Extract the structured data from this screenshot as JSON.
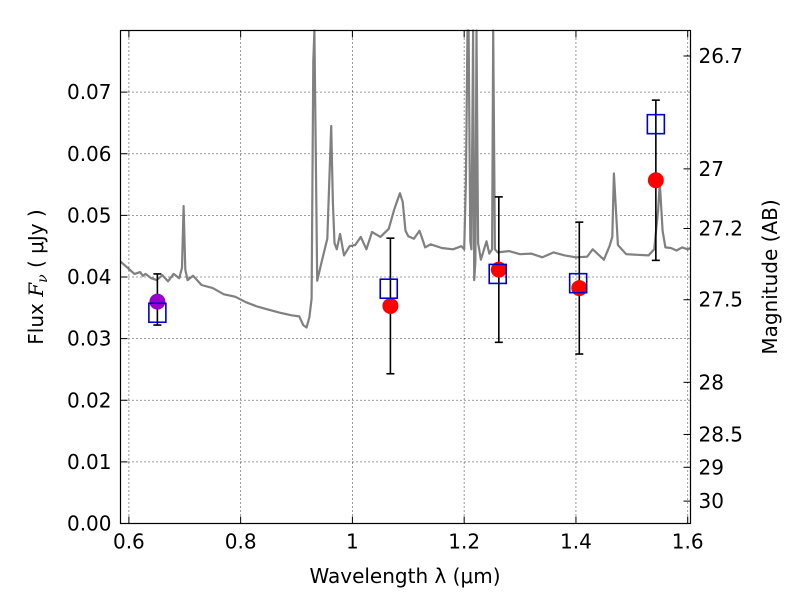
{
  "chart_data": {
    "type": "line",
    "xlabel": "Wavelength  λ (μm)",
    "ylabel": "Flux  F_ν  ( μJy )",
    "ylabel_parts": {
      "main": "Flux  ",
      "sym": "F",
      "sub": "ν",
      "unit": "  ( μJy )"
    },
    "y2label": "Magnitude (AB)",
    "xlim": [
      0.585,
      1.605
    ],
    "ylim": [
      0.0,
      0.08
    ],
    "x_ticks": [
      0.6,
      0.8,
      1.0,
      1.2,
      1.4,
      1.6
    ],
    "x_tick_labels": [
      "0.6",
      "0.8",
      "1",
      "1.2",
      "1.4",
      "1.6"
    ],
    "y_ticks": [
      0.0,
      0.01,
      0.02,
      0.03,
      0.04,
      0.05,
      0.06,
      0.07
    ],
    "y_tick_labels": [
      "0.00",
      "0.01",
      "0.02",
      "0.03",
      "0.04",
      "0.05",
      "0.06",
      "0.07"
    ],
    "y2_ticks": [
      {
        "mag": 26.7,
        "label": "26.7"
      },
      {
        "mag": 27.0,
        "label": "27"
      },
      {
        "mag": 27.2,
        "label": "27.2"
      },
      {
        "mag": 27.5,
        "label": "27.5"
      },
      {
        "mag": 28.0,
        "label": "28"
      },
      {
        "mag": 28.5,
        "label": "28.5"
      },
      {
        "mag": 29.0,
        "label": "29"
      },
      {
        "mag": 30.0,
        "label": "30"
      }
    ],
    "grid": true,
    "series": [
      {
        "kind": "line",
        "color": "#808080",
        "x": [
          0.585,
          0.6,
          0.61,
          0.62,
          0.625,
          0.63,
          0.64,
          0.65,
          0.66,
          0.67,
          0.68,
          0.69,
          0.695,
          0.698,
          0.701,
          0.705,
          0.715,
          0.73,
          0.75,
          0.77,
          0.79,
          0.81,
          0.83,
          0.85,
          0.87,
          0.89,
          0.905,
          0.912,
          0.918,
          0.923,
          0.927,
          0.93,
          0.932,
          0.937,
          0.945,
          0.955,
          0.962,
          0.965,
          0.968,
          0.972,
          0.978,
          0.985,
          0.995,
          1.005,
          1.015,
          1.025,
          1.035,
          1.05,
          1.065,
          1.075,
          1.085,
          1.09,
          1.095,
          1.1,
          1.11,
          1.12,
          1.125,
          1.13,
          1.14,
          1.16,
          1.18,
          1.195,
          1.2,
          1.203,
          1.206,
          1.208,
          1.211,
          1.213,
          1.216,
          1.218,
          1.22,
          1.222,
          1.225,
          1.23,
          1.24,
          1.245,
          1.25,
          1.252,
          1.255,
          1.26,
          1.28,
          1.3,
          1.32,
          1.34,
          1.36,
          1.38,
          1.4,
          1.42,
          1.43,
          1.45,
          1.46,
          1.465,
          1.468,
          1.475,
          1.49,
          1.51,
          1.53,
          1.54,
          1.547,
          1.55,
          1.555,
          1.56,
          1.57,
          1.58,
          1.59,
          1.6,
          1.605
        ],
        "y": [
          0.0425,
          0.0413,
          0.0405,
          0.0408,
          0.0402,
          0.0405,
          0.0398,
          0.0395,
          0.0403,
          0.0393,
          0.0405,
          0.0398,
          0.0415,
          0.0515,
          0.0412,
          0.0395,
          0.0402,
          0.0387,
          0.0382,
          0.0372,
          0.0368,
          0.0359,
          0.0352,
          0.0347,
          0.0342,
          0.0338,
          0.0336,
          0.0322,
          0.0318,
          0.0335,
          0.0365,
          0.075,
          0.082,
          0.0394,
          0.0425,
          0.0462,
          0.0645,
          0.052,
          0.0455,
          0.0445,
          0.047,
          0.0435,
          0.045,
          0.0452,
          0.0465,
          0.0445,
          0.0473,
          0.0465,
          0.0478,
          0.051,
          0.0536,
          0.0522,
          0.0475,
          0.0466,
          0.0462,
          0.0475,
          0.0462,
          0.0448,
          0.0453,
          0.0447,
          0.0445,
          0.045,
          0.0445,
          0.0555,
          0.082,
          0.082,
          0.0458,
          0.0445,
          0.082,
          0.0395,
          0.0425,
          0.082,
          0.0455,
          0.0428,
          0.0458,
          0.0438,
          0.0445,
          0.082,
          0.0445,
          0.044,
          0.0442,
          0.0437,
          0.0438,
          0.0432,
          0.044,
          0.0435,
          0.0432,
          0.0433,
          0.0445,
          0.0428,
          0.045,
          0.0465,
          0.0568,
          0.0452,
          0.0437,
          0.0436,
          0.0435,
          0.0445,
          0.0508,
          0.0553,
          0.0475,
          0.0448,
          0.0447,
          0.0443,
          0.0448,
          0.0445,
          0.0447
        ]
      },
      {
        "kind": "errorbar",
        "color": "#000000",
        "x": [
          0.651,
          1.068,
          1.262,
          1.406,
          1.543
        ],
        "y": [
          0.036,
          0.0353,
          0.0412,
          0.0382,
          0.0557
        ],
        "yerr": [
          [
            0.0038,
            0.011,
            0.0118,
            0.0107,
            0.013
          ],
          [
            0.0045,
            0.011,
            0.0118,
            0.0107,
            0.013
          ]
        ]
      },
      {
        "kind": "scatter",
        "marker": "circle",
        "colors": [
          "#9900cc",
          "#ff0000",
          "#ff0000",
          "#ff0000",
          "#ff0000"
        ],
        "x": [
          0.651,
          1.068,
          1.262,
          1.406,
          1.543
        ],
        "y": [
          0.036,
          0.0353,
          0.0412,
          0.0382,
          0.0557
        ]
      },
      {
        "kind": "scatter",
        "marker": "square",
        "color": "#0000cc",
        "x": [
          0.651,
          1.065,
          1.26,
          1.404,
          1.543
        ],
        "y": [
          0.0342,
          0.0381,
          0.0405,
          0.039,
          0.0648
        ]
      }
    ]
  }
}
